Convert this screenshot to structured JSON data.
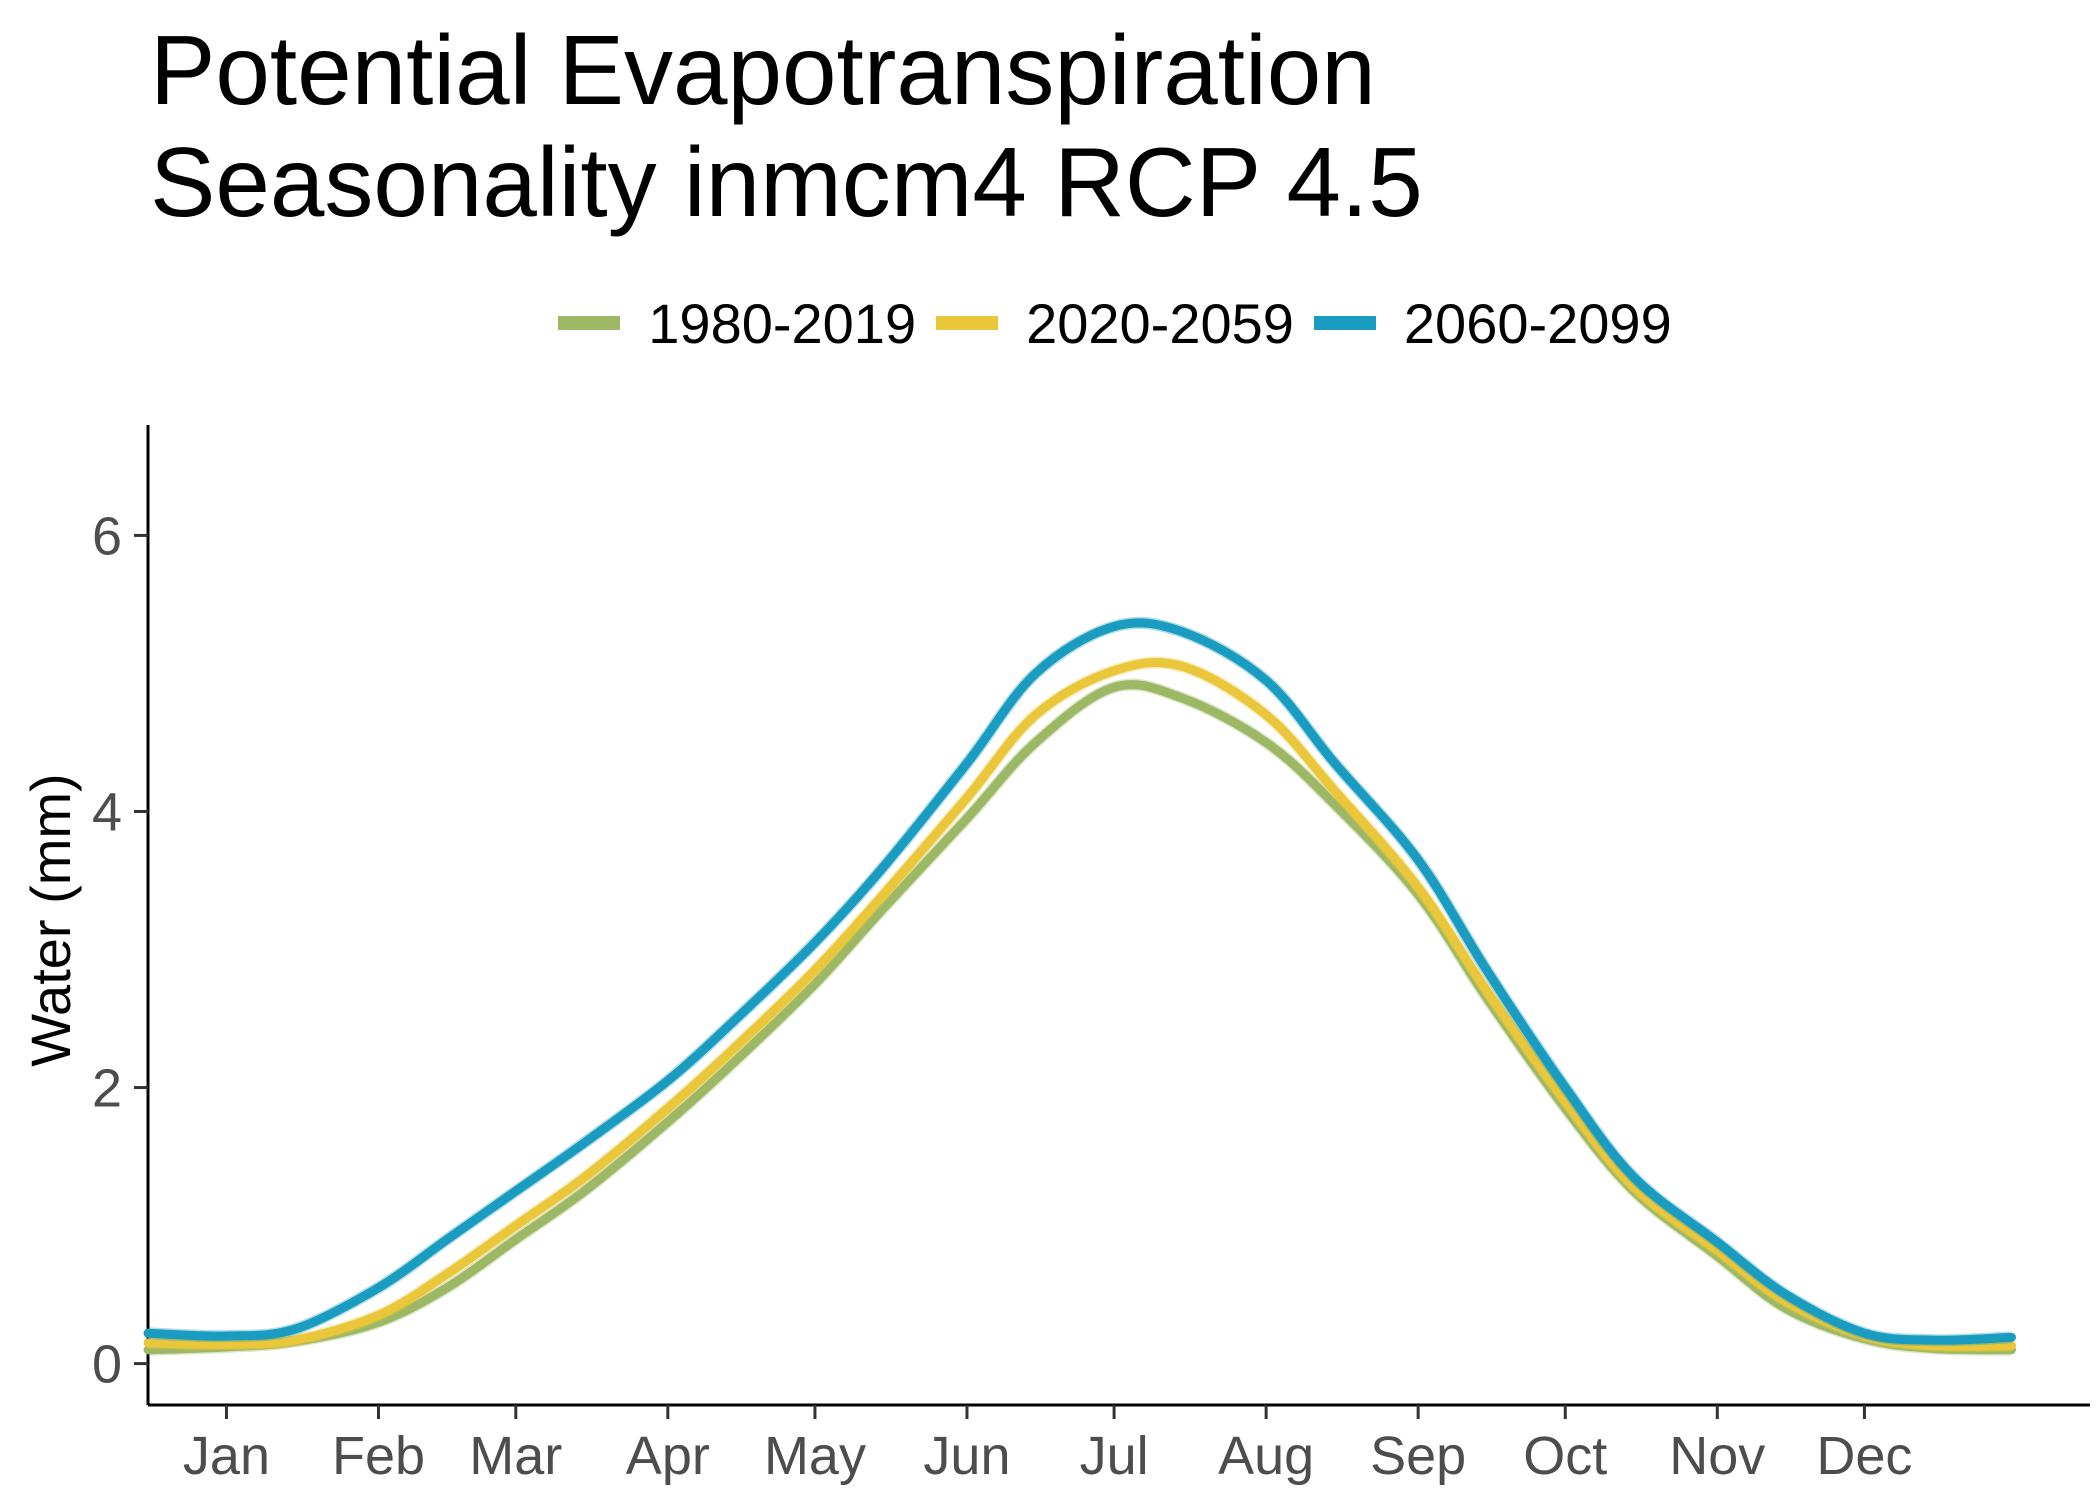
{
  "title": {
    "line1": "Potential Evapotranspiration",
    "line2": "Seasonality inmcm4 RCP 4.5"
  },
  "legend": [
    {
      "label": "1980-2019",
      "color": "#9cb864"
    },
    {
      "label": "2020-2059",
      "color": "#eac63a"
    },
    {
      "label": "2060-2099",
      "color": "#1a9bc0"
    }
  ],
  "chart_data": {
    "type": "line",
    "title": "Potential Evapotranspiration Seasonality inmcm4 RCP 4.5",
    "xlabel": "",
    "ylabel": "Water (mm)",
    "x_ticks": [
      "Jan",
      "Feb",
      "Mar",
      "Apr",
      "May",
      "Jun",
      "Jul",
      "Aug",
      "Sep",
      "Oct",
      "Nov",
      "Dec"
    ],
    "y_ticks": [
      0,
      2,
      4,
      6
    ],
    "xlim": [
      "Dec-16",
      "Jan-16"
    ],
    "ylim": [
      -0.3,
      6.8
    ],
    "grid": false,
    "legend_position": "top",
    "x": [
      "Dec-16",
      "Jan-1",
      "Jan-15",
      "Feb-1",
      "Feb-15",
      "Mar-1",
      "Mar-15",
      "Apr-1",
      "Apr-15",
      "May-1",
      "May-15",
      "Jun-1",
      "Jun-15",
      "Jul-1",
      "Jul-15",
      "Aug-1",
      "Aug-15",
      "Sep-1",
      "Sep-15",
      "Oct-1",
      "Oct-15",
      "Nov-1",
      "Nov-15",
      "Dec-1",
      "Dec-15",
      "Dec-31"
    ],
    "series": [
      {
        "name": "1980-2019",
        "color": "#9cb864",
        "values": [
          0.1,
          0.12,
          0.16,
          0.3,
          0.55,
          0.9,
          1.25,
          1.75,
          2.2,
          2.75,
          3.3,
          3.95,
          4.5,
          4.9,
          4.82,
          4.5,
          4.05,
          3.4,
          2.65,
          1.85,
          1.25,
          0.78,
          0.4,
          0.18,
          0.11,
          0.1
        ]
      },
      {
        "name": "2020-2059",
        "color": "#eac63a",
        "values": [
          0.15,
          0.14,
          0.17,
          0.35,
          0.65,
          1.0,
          1.35,
          1.85,
          2.3,
          2.85,
          3.4,
          4.1,
          4.7,
          5.02,
          5.05,
          4.7,
          4.15,
          3.45,
          2.7,
          1.9,
          1.28,
          0.82,
          0.45,
          0.2,
          0.13,
          0.13
        ]
      },
      {
        "name": "2060-2099",
        "color": "#1a9bc0",
        "values": [
          0.22,
          0.2,
          0.25,
          0.55,
          0.9,
          1.25,
          1.6,
          2.05,
          2.5,
          3.05,
          3.6,
          4.35,
          5.0,
          5.34,
          5.3,
          4.95,
          4.35,
          3.65,
          2.85,
          2.0,
          1.35,
          0.88,
          0.5,
          0.22,
          0.17,
          0.19
        ]
      }
    ]
  }
}
